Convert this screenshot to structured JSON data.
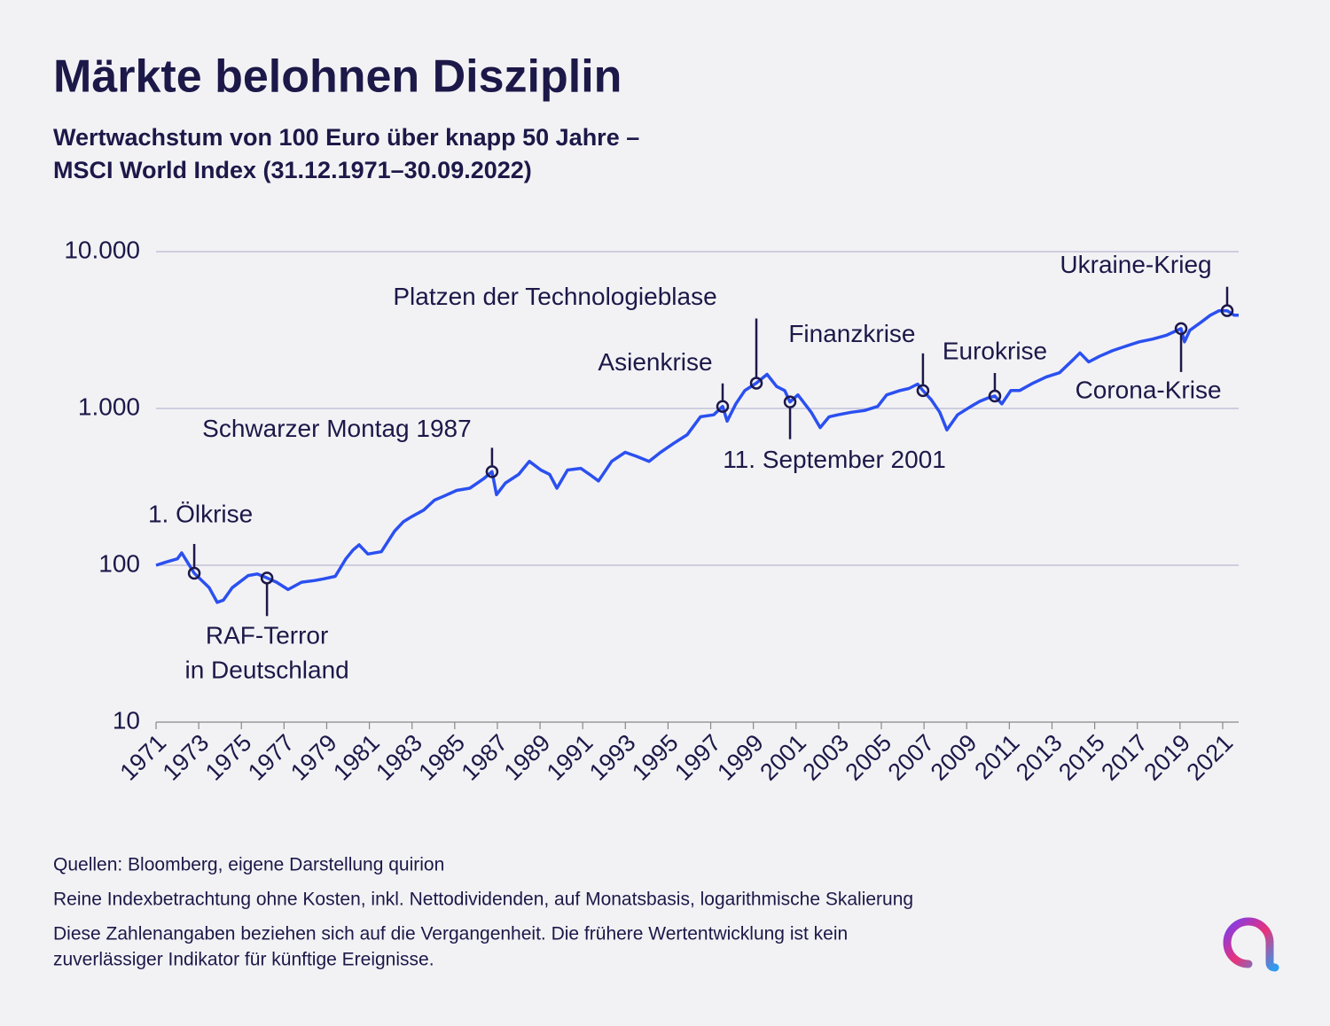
{
  "chart_data": {
    "type": "line",
    "title": "Märkte belohnen Disziplin",
    "subtitle": [
      "Wertwachstum von 100 Euro über knapp 50 Jahre –",
      "MSCI World Index (31.12.1971–30.09.2022)"
    ],
    "log_scale_y": true,
    "grid": true,
    "color": "#2b50f0",
    "xlim": [
      1971,
      2021.75
    ],
    "xticks": [
      1971,
      1973,
      1975,
      1977,
      1979,
      1981,
      1983,
      1985,
      1987,
      1989,
      1991,
      1993,
      1995,
      1997,
      1999,
      2001,
      2003,
      2005,
      2007,
      2009,
      2011,
      2013,
      2015,
      2017,
      2019,
      2021
    ],
    "ylim": [
      10,
      10000
    ],
    "yticks": [
      10,
      100,
      {
        "value": 1000,
        "label": "1.000"
      },
      {
        "value": 10000,
        "label": "10.000"
      }
    ],
    "x": [
      1971,
      1971.5,
      1972.0,
      1972.2,
      1972.79,
      1973.49,
      1973.87,
      1974.16,
      1974.57,
      1975.32,
      1975.74,
      1976.2,
      1976.65,
      1977.19,
      1977.82,
      1978.44,
      1978.86,
      1979.4,
      1979.9,
      1980.23,
      1980.52,
      1980.93,
      1981.56,
      1982.18,
      1982.6,
      1983.01,
      1983.55,
      1984.05,
      1984.47,
      1985.09,
      1985.71,
      1986.34,
      1986.75,
      1986.96,
      1987.38,
      1988.0,
      1988.5,
      1989.04,
      1989.45,
      1989.79,
      1990.29,
      1990.91,
      1991.32,
      1991.74,
      1992.36,
      1992.99,
      1993.53,
      1994.11,
      1994.65,
      1995.27,
      1995.9,
      1996.52,
      1997.14,
      1997.56,
      1997.77,
      1998.18,
      1998.6,
      1999.14,
      1999.64,
      2000.09,
      2000.47,
      2000.72,
      2001.09,
      2001.71,
      2002.13,
      2002.55,
      2002.96,
      2003.59,
      2004.21,
      2004.83,
      2005.25,
      2005.87,
      2006.29,
      2006.7,
      2006.95,
      2007.33,
      2007.74,
      2008.07,
      2008.57,
      2009.2,
      2009.61,
      2010.03,
      2010.32,
      2010.65,
      2011.07,
      2011.48,
      2012.11,
      2012.73,
      2013.35,
      2013.98,
      2014.31,
      2014.72,
      2015.22,
      2015.85,
      2016.47,
      2017.09,
      2017.72,
      2018.34,
      2019.05,
      2019.21,
      2019.46,
      2020.0,
      2020.42,
      2020.83,
      2021.21,
      2021.54,
      2021.75
    ],
    "values": [
      100,
      105,
      110,
      120,
      89,
      72,
      58,
      60,
      72,
      86,
      88,
      83,
      78,
      70,
      78,
      80,
      82,
      85,
      110,
      125,
      135,
      118,
      122,
      165,
      190,
      205,
      225,
      260,
      275,
      300,
      310,
      355,
      395,
      282,
      335,
      380,
      460,
      405,
      380,
      310,
      405,
      415,
      380,
      345,
      460,
      525,
      495,
      460,
      525,
      600,
      680,
      885,
      910,
      1030,
      830,
      1070,
      1300,
      1450,
      1650,
      1380,
      1300,
      1100,
      1220,
      945,
      755,
      885,
      910,
      945,
      970,
      1030,
      1220,
      1300,
      1340,
      1430,
      1300,
      1140,
      945,
      730,
      910,
      1030,
      1110,
      1170,
      1200,
      1070,
      1300,
      1300,
      1450,
      1590,
      1690,
      2040,
      2260,
      1980,
      2150,
      2340,
      2500,
      2660,
      2770,
      2920,
      3230,
      2660,
      3150,
      3560,
      3930,
      4200,
      4200,
      3930,
      3930
    ],
    "annotations": [
      {
        "label": [
          "1. Ölkrise"
        ],
        "x": 1972.79,
        "y": 89
      },
      {
        "label": [
          "RAF-Terror",
          "in Deutschland"
        ],
        "x": 1976.2,
        "y": 83
      },
      {
        "label": [
          "Schwarzer Montag 1987"
        ],
        "x": 1986.75,
        "y": 395
      },
      {
        "label": [
          "Asienkrise"
        ],
        "x": 1997.56,
        "y": 1030
      },
      {
        "label": [
          "Platzen der Technologieblase"
        ],
        "x": 1999.14,
        "y": 1450
      },
      {
        "label": [
          "11. September 2001"
        ],
        "x": 2000.72,
        "y": 1100
      },
      {
        "label": [
          "Finanzkrise"
        ],
        "x": 2006.95,
        "y": 1300
      },
      {
        "label": [
          "Eurokrise"
        ],
        "x": 2010.32,
        "y": 1200
      },
      {
        "label": [
          "Corona-Krise"
        ],
        "x": 2019.05,
        "y": 3230
      },
      {
        "label": [
          "Ukraine-Krieg"
        ],
        "x": 2021.21,
        "y": 4200
      }
    ],
    "notes": [
      "Quellen: Bloomberg, eigene Darstellung quirion",
      "Reine Indexbetrachtung ohne Kosten, inkl. Nettodividenden, auf Monatsbasis, logarithmische Skalierung",
      "Diese Zahlenangaben beziehen sich auf die Vergangenheit. Die frühere Wertentwicklung ist kein",
      "zuverlässiger Indikator für künftige Ereignisse."
    ]
  }
}
